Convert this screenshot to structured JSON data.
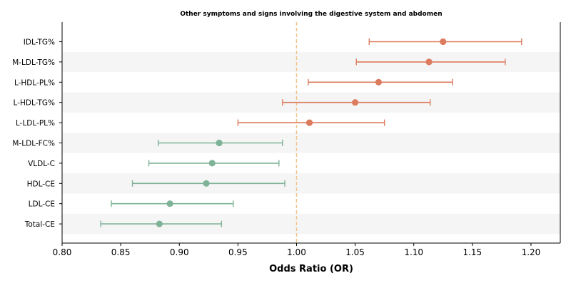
{
  "chart_data": {
    "type": "forest",
    "title": "Other symptoms and signs involving the digestive system and abdomen",
    "xlabel": "Odds Ratio (OR)",
    "xlim": [
      0.8,
      1.225
    ],
    "xticks": [
      "0.80",
      "0.85",
      "0.90",
      "0.95",
      "1.00",
      "1.05",
      "1.10",
      "1.15",
      "1.20"
    ],
    "reference_line": 1.0,
    "colors": {
      "risk": "#dd7b5e",
      "protective": "#7fb398",
      "reference": "#f0c48a",
      "band": "#f5f5f5"
    },
    "rows": [
      {
        "label": "IDL-TG%",
        "or": 1.125,
        "lower": 1.062,
        "upper": 1.192
      },
      {
        "label": "M-LDL-TG%",
        "or": 1.113,
        "lower": 1.051,
        "upper": 1.178
      },
      {
        "label": "L-HDL-PL%",
        "or": 1.07,
        "lower": 1.01,
        "upper": 1.133
      },
      {
        "label": "L-HDL-TG%",
        "or": 1.05,
        "lower": 0.988,
        "upper": 1.114
      },
      {
        "label": "L-LDL-PL%",
        "or": 1.011,
        "lower": 0.95,
        "upper": 1.075
      },
      {
        "label": "M-LDL-FC%",
        "or": 0.934,
        "lower": 0.882,
        "upper": 0.988
      },
      {
        "label": "VLDL-C",
        "or": 0.928,
        "lower": 0.874,
        "upper": 0.985
      },
      {
        "label": "HDL-CE",
        "or": 0.923,
        "lower": 0.86,
        "upper": 0.99
      },
      {
        "label": "LDL-CE",
        "or": 0.892,
        "lower": 0.842,
        "upper": 0.946
      },
      {
        "label": "Total-CE",
        "or": 0.883,
        "lower": 0.833,
        "upper": 0.936
      }
    ]
  }
}
